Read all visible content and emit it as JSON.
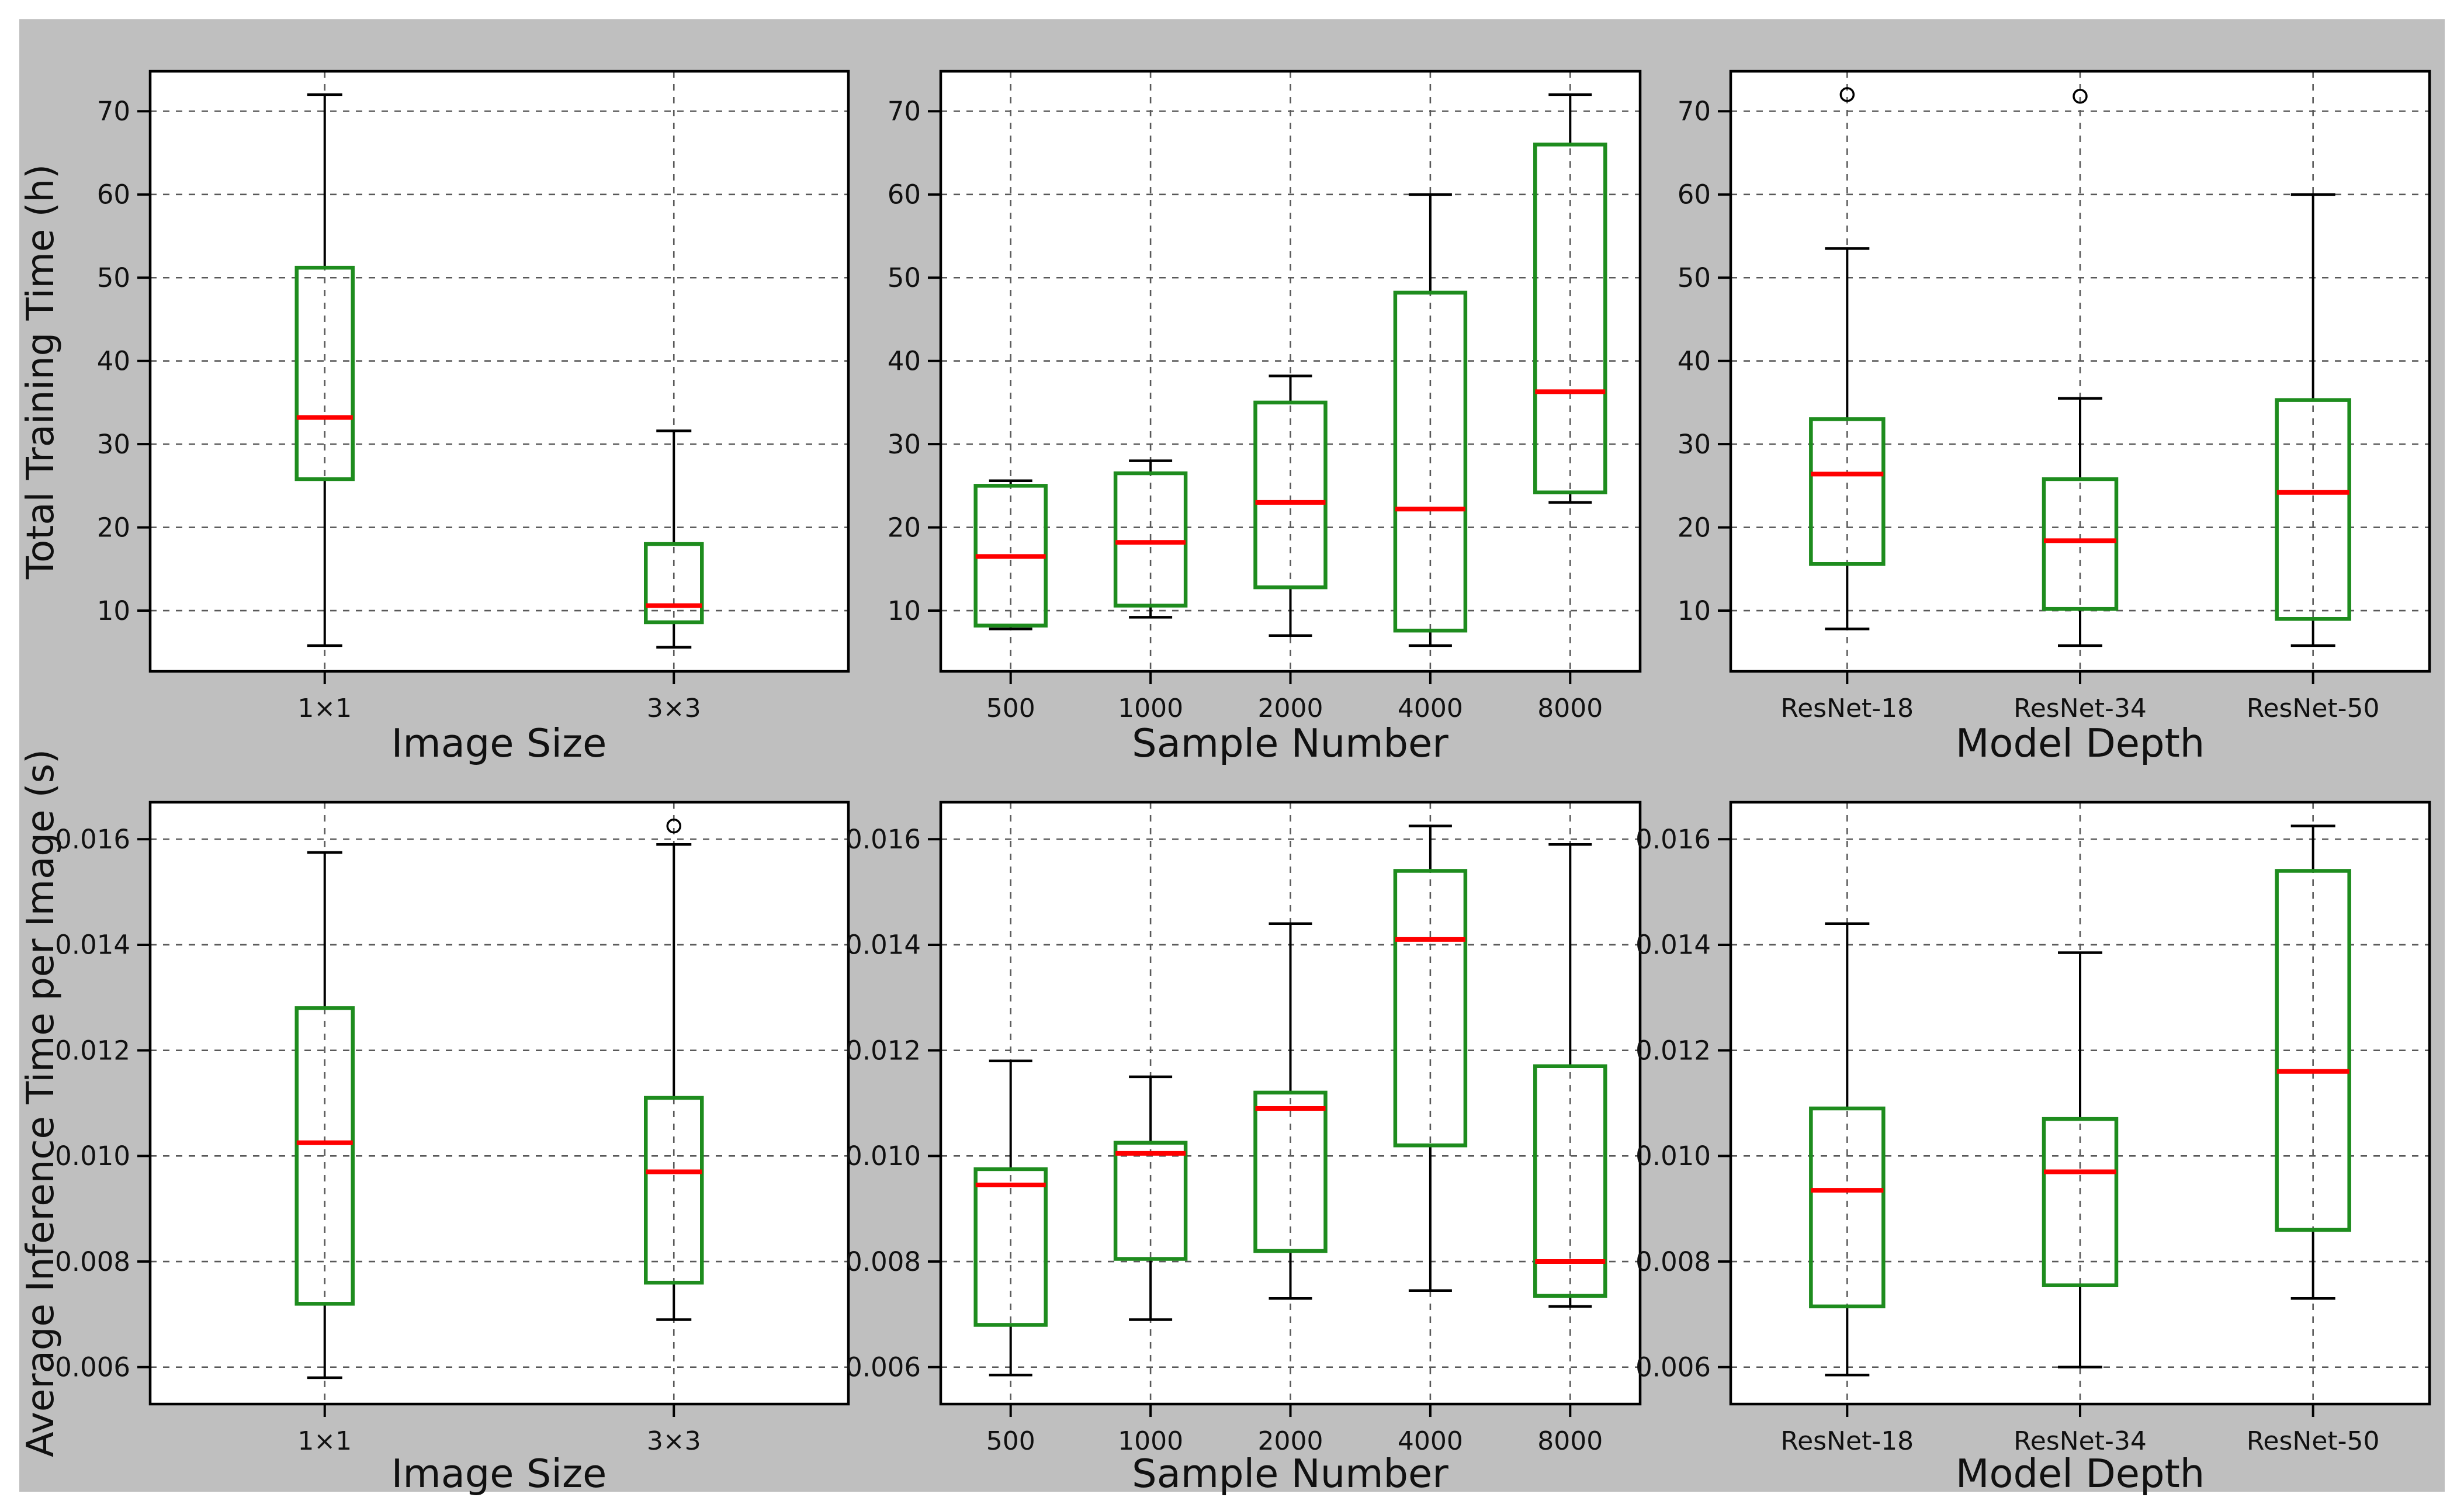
{
  "figure": {
    "background": "#bfbfbf",
    "page_background": "#ffffff",
    "plot_background": "#ffffff",
    "grid_color": "#595959",
    "axis_color": "#000000",
    "text_color": "#111111",
    "box_color": "#1e8c1e",
    "median_color": "#ff0000",
    "whisker_color": "#000000"
  },
  "chart_data": [
    {
      "type": "box",
      "position": {
        "row": 0,
        "col": 0
      },
      "xlabel": "Image Size",
      "ylabel": "Total Training Time (h)",
      "categories": [
        "1×1",
        "3×3"
      ],
      "ylim": [
        2.7,
        74.8
      ],
      "yticks": [
        10,
        20,
        30,
        40,
        50,
        60,
        70
      ],
      "ytick_labels": [
        "10",
        "20",
        "30",
        "40",
        "50",
        "60",
        "70"
      ],
      "grid": true,
      "boxes": [
        {
          "category": "1×1",
          "whisker_low": 5.8,
          "q1": 25.8,
          "median": 33.2,
          "q3": 51.2,
          "whisker_high": 72.0,
          "outliers": []
        },
        {
          "category": "3×3",
          "whisker_low": 5.6,
          "q1": 8.6,
          "median": 10.6,
          "q3": 18.0,
          "whisker_high": 31.6,
          "outliers": []
        }
      ]
    },
    {
      "type": "box",
      "position": {
        "row": 0,
        "col": 1
      },
      "xlabel": "Sample Number",
      "categories": [
        "500",
        "1000",
        "2000",
        "4000",
        "8000"
      ],
      "ylim": [
        2.7,
        74.8
      ],
      "yticks": [
        10,
        20,
        30,
        40,
        50,
        60,
        70
      ],
      "ytick_labels": [
        "10",
        "20",
        "30",
        "40",
        "50",
        "60",
        "70"
      ],
      "grid": true,
      "boxes": [
        {
          "category": "500",
          "whisker_low": 7.8,
          "q1": 8.2,
          "median": 16.5,
          "q3": 25.0,
          "whisker_high": 25.6,
          "outliers": []
        },
        {
          "category": "1000",
          "whisker_low": 9.2,
          "q1": 10.6,
          "median": 18.2,
          "q3": 26.5,
          "whisker_high": 28.0,
          "outliers": []
        },
        {
          "category": "2000",
          "whisker_low": 7.0,
          "q1": 12.8,
          "median": 23.0,
          "q3": 35.0,
          "whisker_high": 38.2,
          "outliers": []
        },
        {
          "category": "4000",
          "whisker_low": 5.8,
          "q1": 7.6,
          "median": 22.2,
          "q3": 48.2,
          "whisker_high": 60.0,
          "outliers": []
        },
        {
          "category": "8000",
          "whisker_low": 23.0,
          "q1": 24.2,
          "median": 36.3,
          "q3": 66.0,
          "whisker_high": 72.0,
          "outliers": []
        }
      ]
    },
    {
      "type": "box",
      "position": {
        "row": 0,
        "col": 2
      },
      "xlabel": "Model Depth",
      "categories": [
        "ResNet-18",
        "ResNet-34",
        "ResNet-50"
      ],
      "ylim": [
        2.7,
        74.8
      ],
      "yticks": [
        10,
        20,
        30,
        40,
        50,
        60,
        70
      ],
      "ytick_labels": [
        "10",
        "20",
        "30",
        "40",
        "50",
        "60",
        "70"
      ],
      "grid": true,
      "boxes": [
        {
          "category": "ResNet-18",
          "whisker_low": 7.8,
          "q1": 15.6,
          "median": 26.4,
          "q3": 33.0,
          "whisker_high": 53.5,
          "outliers": [
            72.0
          ]
        },
        {
          "category": "ResNet-34",
          "whisker_low": 5.8,
          "q1": 10.2,
          "median": 18.4,
          "q3": 25.8,
          "whisker_high": 35.5,
          "outliers": [
            71.8
          ]
        },
        {
          "category": "ResNet-50",
          "whisker_low": 5.8,
          "q1": 9.0,
          "median": 24.2,
          "q3": 35.3,
          "whisker_high": 60.0,
          "outliers": []
        }
      ]
    },
    {
      "type": "box",
      "position": {
        "row": 1,
        "col": 0
      },
      "xlabel": "Image Size",
      "ylabel": "Average Inference Time per Image (s)",
      "categories": [
        "1×1",
        "3×3"
      ],
      "ylim": [
        0.0053,
        0.0167
      ],
      "yticks": [
        0.006,
        0.008,
        0.01,
        0.012,
        0.014,
        0.016
      ],
      "ytick_labels": [
        "0.006",
        "0.008",
        "0.010",
        "0.012",
        "0.014",
        "0.016"
      ],
      "grid": true,
      "boxes": [
        {
          "category": "1×1",
          "whisker_low": 0.0058,
          "q1": 0.0072,
          "median": 0.01025,
          "q3": 0.0128,
          "whisker_high": 0.01575,
          "outliers": []
        },
        {
          "category": "3×3",
          "whisker_low": 0.0069,
          "q1": 0.0076,
          "median": 0.0097,
          "q3": 0.0111,
          "whisker_high": 0.0159,
          "outliers": [
            0.01625
          ]
        }
      ]
    },
    {
      "type": "box",
      "position": {
        "row": 1,
        "col": 1
      },
      "xlabel": "Sample Number",
      "categories": [
        "500",
        "1000",
        "2000",
        "4000",
        "8000"
      ],
      "ylim": [
        0.0053,
        0.0167
      ],
      "yticks": [
        0.006,
        0.008,
        0.01,
        0.012,
        0.014,
        0.016
      ],
      "ytick_labels": [
        "0.006",
        "0.008",
        "0.010",
        "0.012",
        "0.014",
        "0.016"
      ],
      "grid": true,
      "boxes": [
        {
          "category": "500",
          "whisker_low": 0.00585,
          "q1": 0.0068,
          "median": 0.00945,
          "q3": 0.00975,
          "whisker_high": 0.0118,
          "outliers": []
        },
        {
          "category": "1000",
          "whisker_low": 0.0069,
          "q1": 0.00805,
          "median": 0.01005,
          "q3": 0.01025,
          "whisker_high": 0.0115,
          "outliers": []
        },
        {
          "category": "2000",
          "whisker_low": 0.0073,
          "q1": 0.0082,
          "median": 0.0109,
          "q3": 0.0112,
          "whisker_high": 0.0144,
          "outliers": []
        },
        {
          "category": "4000",
          "whisker_low": 0.00745,
          "q1": 0.0102,
          "median": 0.0141,
          "q3": 0.0154,
          "whisker_high": 0.01625,
          "outliers": []
        },
        {
          "category": "8000",
          "whisker_low": 0.00715,
          "q1": 0.00735,
          "median": 0.008,
          "q3": 0.0117,
          "whisker_high": 0.0159,
          "outliers": []
        }
      ]
    },
    {
      "type": "box",
      "position": {
        "row": 1,
        "col": 2
      },
      "xlabel": "Model Depth",
      "categories": [
        "ResNet-18",
        "ResNet-34",
        "ResNet-50"
      ],
      "ylim": [
        0.0053,
        0.0167
      ],
      "yticks": [
        0.006,
        0.008,
        0.01,
        0.012,
        0.014,
        0.016
      ],
      "ytick_labels": [
        "0.006",
        "0.008",
        "0.010",
        "0.012",
        "0.014",
        "0.016"
      ],
      "grid": true,
      "boxes": [
        {
          "category": "ResNet-18",
          "whisker_low": 0.00585,
          "q1": 0.00715,
          "median": 0.00935,
          "q3": 0.0109,
          "whisker_high": 0.0144,
          "outliers": []
        },
        {
          "category": "ResNet-34",
          "whisker_low": 0.006,
          "q1": 0.00755,
          "median": 0.0097,
          "q3": 0.0107,
          "whisker_high": 0.01385,
          "outliers": []
        },
        {
          "category": "ResNet-50",
          "whisker_low": 0.0073,
          "q1": 0.0086,
          "median": 0.0116,
          "q3": 0.0154,
          "whisker_high": 0.01625,
          "outliers": []
        }
      ]
    }
  ]
}
